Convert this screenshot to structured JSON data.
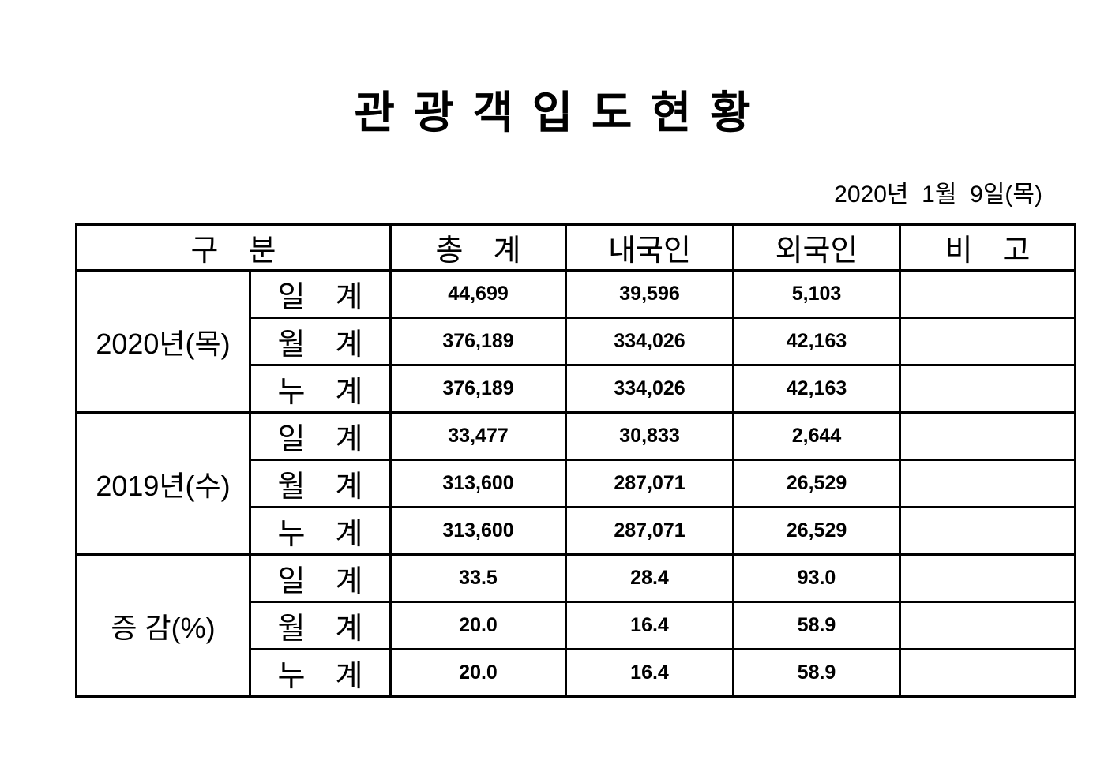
{
  "title": "관 광 객 입 도 현 황",
  "date": "2020년  1월  9일(목)",
  "table": {
    "headers": {
      "category": "구　분",
      "total": "총　계",
      "domestic": "내국인",
      "foreign": "외국인",
      "remarks": "비　고"
    },
    "sections": [
      {
        "label": "2020년(목)",
        "rows": [
          {
            "label": "일　계",
            "total": "44,699",
            "domestic": "39,596",
            "foreign": "5,103",
            "remark": ""
          },
          {
            "label": "월　계",
            "total": "376,189",
            "domestic": "334,026",
            "foreign": "42,163",
            "remark": ""
          },
          {
            "label": "누　계",
            "total": "376,189",
            "domestic": "334,026",
            "foreign": "42,163",
            "remark": ""
          }
        ]
      },
      {
        "label": "2019년(수)",
        "rows": [
          {
            "label": "일　계",
            "total": "33,477",
            "domestic": "30,833",
            "foreign": "2,644",
            "remark": ""
          },
          {
            "label": "월　계",
            "total": "313,600",
            "domestic": "287,071",
            "foreign": "26,529",
            "remark": ""
          },
          {
            "label": "누　계",
            "total": "313,600",
            "domestic": "287,071",
            "foreign": "26,529",
            "remark": ""
          }
        ]
      },
      {
        "label": "증 감(%)",
        "rows": [
          {
            "label": "일　계",
            "total": "33.5",
            "domestic": "28.4",
            "foreign": "93.0",
            "remark": ""
          },
          {
            "label": "월　계",
            "total": "20.0",
            "domestic": "16.4",
            "foreign": "58.9",
            "remark": ""
          },
          {
            "label": "누　계",
            "total": "20.0",
            "domestic": "16.4",
            "foreign": "58.9",
            "remark": ""
          }
        ]
      }
    ]
  }
}
